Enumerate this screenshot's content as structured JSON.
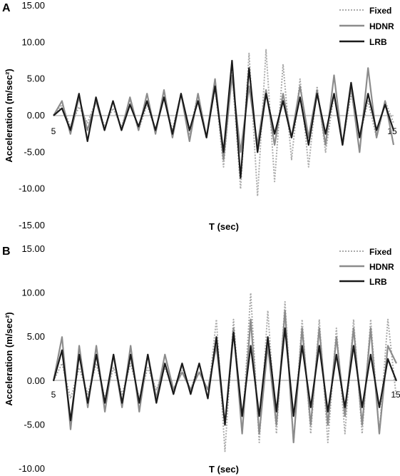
{
  "chart_data": [
    {
      "panel_label": "A",
      "type": "line",
      "x_tick_labels": [
        "5",
        "15"
      ],
      "xlabel": "T (sec)",
      "ylabel": "Acceleration (m/sec²)",
      "ylim": [
        -15,
        15
      ],
      "yticks": [
        "15.00",
        "10.00",
        "5.00",
        "0.00",
        "-5.00",
        "-10.00",
        "-15.00"
      ],
      "grid": false,
      "legend": "top-right",
      "series": [
        {
          "name": "Fixed",
          "style": "dotted",
          "color": "#aaaaaa",
          "x": [
            5,
            5.25,
            5.5,
            5.75,
            6,
            6.25,
            6.5,
            6.75,
            7,
            7.25,
            7.5,
            7.75,
            8,
            8.25,
            8.5,
            8.75,
            9,
            9.25,
            9.5,
            9.75,
            10,
            10.25,
            10.5,
            10.75,
            11,
            11.25,
            11.5,
            11.75,
            12,
            12.25,
            12.5,
            12.75,
            13,
            13.25,
            13.5,
            13.75,
            14,
            14.25,
            14.5,
            14.75,
            15
          ],
          "y": [
            0,
            1.5,
            -1.5,
            1.2,
            -1,
            2,
            -1.5,
            1,
            -1.5,
            2,
            -2,
            1.5,
            -2,
            2.5,
            -2,
            3,
            -2.5,
            3,
            -3,
            4,
            -7,
            6,
            -10,
            8.5,
            -11,
            9,
            -9,
            7,
            -6,
            5,
            -7,
            4,
            -5,
            3,
            -4,
            3,
            -3,
            2,
            -3,
            2,
            -1
          ]
        },
        {
          "name": "HDNR",
          "style": "solid",
          "color": "#8c8c8c",
          "x": [
            5,
            5.25,
            5.5,
            5.75,
            6,
            6.25,
            6.5,
            6.75,
            7,
            7.25,
            7.5,
            7.75,
            8,
            8.25,
            8.5,
            8.75,
            9,
            9.25,
            9.5,
            9.75,
            10,
            10.25,
            10.5,
            10.75,
            11,
            11.25,
            11.5,
            11.75,
            12,
            12.25,
            12.5,
            12.75,
            13,
            13.25,
            13.5,
            13.75,
            14,
            14.25,
            14.5,
            14.75,
            15
          ],
          "y": [
            0,
            2,
            -2.5,
            2.5,
            -2,
            2,
            -2,
            2,
            -2,
            2.5,
            -2,
            3,
            -2.5,
            3.5,
            -3,
            3,
            -3.5,
            3,
            -3,
            5,
            -6,
            5.5,
            -5,
            4,
            -4,
            3.5,
            -4,
            3,
            -3,
            4,
            -3,
            3.5,
            -4,
            5.5,
            -4,
            4,
            -5,
            6.5,
            -3,
            2,
            -4
          ]
        },
        {
          "name": "LRB",
          "style": "solid",
          "color": "#1a1a1a",
          "x": [
            5,
            5.25,
            5.5,
            5.75,
            6,
            6.25,
            6.5,
            6.75,
            7,
            7.25,
            7.5,
            7.75,
            8,
            8.25,
            8.5,
            8.75,
            9,
            9.25,
            9.5,
            9.75,
            10,
            10.25,
            10.5,
            10.75,
            11,
            11.25,
            11.5,
            11.75,
            12,
            12.25,
            12.5,
            12.75,
            13,
            13.25,
            13.5,
            13.75,
            14,
            14.25,
            14.5,
            14.75,
            15
          ],
          "y": [
            0,
            1,
            -2,
            3,
            -3.5,
            2.5,
            -2,
            2,
            -2,
            1.5,
            -1.5,
            2,
            -2,
            2.5,
            -2.5,
            3,
            -2,
            2,
            -3,
            4,
            -5,
            7.5,
            -8.5,
            6.5,
            -5,
            3,
            -2.5,
            2,
            -3,
            2.5,
            -4,
            3,
            -2.5,
            3,
            -4,
            4.5,
            -3,
            3,
            -2,
            1.5,
            -2
          ]
        }
      ]
    },
    {
      "panel_label": "B",
      "type": "line",
      "x_tick_labels": [
        "5",
        "15"
      ],
      "xlabel": "T (sec)",
      "ylabel": "Acceleration (m/sec²)",
      "ylim": [
        -10,
        15
      ],
      "yticks": [
        "15.00",
        "10.00",
        "5.00",
        "0.00",
        "-5.00",
        "-10.00"
      ],
      "grid": false,
      "legend": "top-right",
      "series": [
        {
          "name": "Fixed",
          "style": "dotted",
          "color": "#aaaaaa",
          "x": [
            5,
            5.25,
            5.5,
            5.75,
            6,
            6.25,
            6.5,
            6.75,
            7,
            7.25,
            7.5,
            7.75,
            8,
            8.25,
            8.5,
            8.75,
            9,
            9.25,
            9.5,
            9.75,
            10,
            10.25,
            10.5,
            10.75,
            11,
            11.25,
            11.5,
            11.75,
            12,
            12.25,
            12.5,
            12.75,
            13,
            13.25,
            13.5,
            13.75,
            14,
            14.25,
            14.5,
            14.75,
            15
          ],
          "y": [
            0,
            2,
            -2,
            1.5,
            -1.5,
            2,
            -2,
            1.5,
            -1.5,
            2,
            -2,
            1.5,
            -1,
            1.5,
            -1,
            1.5,
            -1,
            2,
            -2,
            7,
            -8,
            7,
            -6,
            10,
            -7,
            8,
            -6,
            9,
            -7,
            7,
            -6,
            7,
            -7,
            6,
            -6,
            7,
            -6,
            7,
            -6,
            7,
            -2
          ]
        },
        {
          "name": "HDNR",
          "style": "solid",
          "color": "#8c8c8c",
          "x": [
            5,
            5.25,
            5.5,
            5.75,
            6,
            6.25,
            6.5,
            6.75,
            7,
            7.25,
            7.5,
            7.75,
            8,
            8.25,
            8.5,
            8.75,
            9,
            9.25,
            9.5,
            9.75,
            10,
            10.25,
            10.5,
            10.75,
            11,
            11.25,
            11.5,
            11.75,
            12,
            12.25,
            12.5,
            12.75,
            13,
            13.25,
            13.5,
            13.75,
            14,
            14.25,
            14.5,
            14.75,
            15
          ],
          "y": [
            0,
            5,
            -5.5,
            4,
            -3,
            4,
            -3.5,
            3,
            -3,
            4,
            -3.5,
            3,
            -2,
            3,
            -1,
            1,
            -1,
            1,
            -1,
            4,
            -5,
            6,
            -6,
            7,
            -6,
            4,
            -5,
            8,
            -7,
            6,
            -5,
            6,
            -5,
            5,
            -4,
            6,
            -5,
            6,
            -6,
            4,
            2
          ]
        },
        {
          "name": "LRB",
          "style": "solid",
          "color": "#1a1a1a",
          "x": [
            5,
            5.25,
            5.5,
            5.75,
            6,
            6.25,
            6.5,
            6.75,
            7,
            7.25,
            7.5,
            7.75,
            8,
            8.25,
            8.5,
            8.75,
            9,
            9.25,
            9.5,
            9.75,
            10,
            10.25,
            10.5,
            10.75,
            11,
            11.25,
            11.5,
            11.75,
            12,
            12.25,
            12.5,
            12.75,
            13,
            13.25,
            13.5,
            13.75,
            14,
            14.25,
            14.5,
            14.75,
            15
          ],
          "y": [
            0,
            3.5,
            -4.5,
            3,
            -2.5,
            3,
            -2.5,
            3,
            -2.5,
            3,
            -2.5,
            3,
            -2.5,
            2,
            -1.5,
            2,
            -1.5,
            2,
            -2,
            5,
            -5,
            5.5,
            -4,
            4,
            -4,
            5,
            -3.5,
            6,
            -4,
            4,
            -3,
            4,
            -3.5,
            3,
            -3,
            4,
            -3,
            3,
            -3,
            2.5,
            0
          ]
        }
      ]
    }
  ]
}
